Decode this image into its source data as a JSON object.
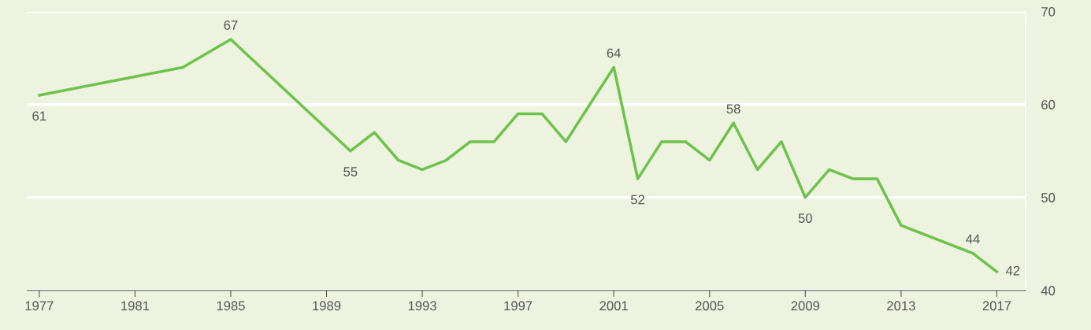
{
  "chart_data": {
    "type": "line",
    "x": [
      1977,
      1983,
      1985,
      1990,
      1991,
      1992,
      1993,
      1994,
      1995,
      1996,
      1997,
      1998,
      1999,
      2001,
      2002,
      2003,
      2004,
      2005,
      2006,
      2007,
      2008,
      2009,
      2010,
      2011,
      2012,
      2013,
      2016,
      2017
    ],
    "series": [
      {
        "color": "#6cc24a",
        "values": [
          61,
          64,
          67,
          55,
          57,
          54,
          53,
          54,
          56,
          56,
          59,
          59,
          56,
          64,
          52,
          56,
          56,
          54,
          58,
          53,
          56,
          50,
          53,
          52,
          52,
          47,
          44,
          42
        ],
        "value_labels": [
          "61",
          null,
          "67",
          "55",
          null,
          null,
          null,
          null,
          null,
          null,
          null,
          null,
          null,
          "64",
          "52",
          null,
          null,
          null,
          "58",
          null,
          null,
          "50",
          null,
          null,
          null,
          null,
          "44",
          "42"
        ]
      }
    ],
    "xlim": [
      1976.5,
      2018.2
    ],
    "xticks": [
      1977,
      1981,
      1985,
      1989,
      1993,
      1997,
      2001,
      2005,
      2009,
      2013,
      2017
    ],
    "ylim": [
      40,
      70
    ],
    "yticks": [
      40,
      50,
      60,
      70
    ],
    "grid": "y",
    "legend": false,
    "marker": "none",
    "line_style": "solid"
  }
}
